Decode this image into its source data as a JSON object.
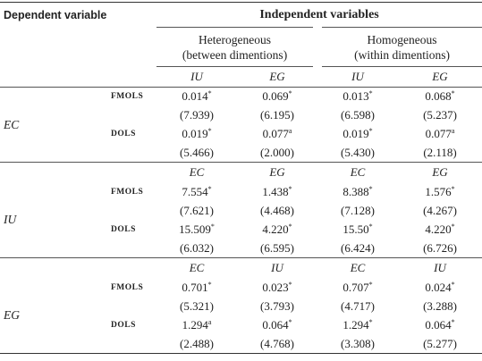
{
  "header": {
    "dependent": "Dependent variable",
    "independent": "Independent variables",
    "groups": [
      [
        "Heterogeneous",
        "(between dimentions)"
      ],
      [
        "Homogeneous",
        "(within dimentions)"
      ]
    ]
  },
  "sections": [
    {
      "label": "EC",
      "columns": [
        "IU",
        "EG",
        "IU",
        "EG"
      ],
      "rows": [
        {
          "method": "FMOLS",
          "coef": [
            [
              "0.014",
              "*"
            ],
            [
              "0.069",
              "*"
            ],
            [
              "0.013",
              "*"
            ],
            [
              "0.068",
              "*"
            ]
          ],
          "t": [
            "(7.939)",
            "(6.195)",
            "(6.598)",
            "(5.237)"
          ]
        },
        {
          "method": "DOLS",
          "coef": [
            [
              "0.019",
              "*"
            ],
            [
              "0.077",
              "a"
            ],
            [
              "0.019",
              "*"
            ],
            [
              "0.077",
              "a"
            ]
          ],
          "t": [
            "(5.466)",
            "(2.000)",
            "(5.430)",
            "(2.118)"
          ]
        }
      ]
    },
    {
      "label": "IU",
      "columns": [
        "EC",
        "EG",
        "EC",
        "EG"
      ],
      "rows": [
        {
          "method": "FMOLS",
          "coef": [
            [
              "7.554",
              "*"
            ],
            [
              "1.438",
              "*"
            ],
            [
              "8.388",
              "*"
            ],
            [
              "1.576",
              "*"
            ]
          ],
          "t": [
            "(7.621)",
            "(4.468)",
            "(7.128)",
            "(4.267)"
          ]
        },
        {
          "method": "DOLS",
          "coef": [
            [
              "15.509",
              "*"
            ],
            [
              "4.220",
              "*"
            ],
            [
              "15.50",
              "*"
            ],
            [
              "4.220",
              "*"
            ]
          ],
          "t": [
            "(6.032)",
            "(6.595)",
            "(6.424)",
            "(6.726)"
          ]
        }
      ]
    },
    {
      "label": "EG",
      "columns": [
        "EC",
        "IU",
        "EC",
        "IU"
      ],
      "rows": [
        {
          "method": "FMOLS",
          "coef": [
            [
              "0.701",
              "*"
            ],
            [
              "0.023",
              "*"
            ],
            [
              "0.707",
              "*"
            ],
            [
              "0.024",
              "*"
            ]
          ],
          "t": [
            "(5.321)",
            "(3.793)",
            "(4.717)",
            "(3.288)"
          ]
        },
        {
          "method": "DOLS",
          "coef": [
            [
              "1.294",
              "a"
            ],
            [
              "0.064",
              "*"
            ],
            [
              "1.294",
              "*"
            ],
            [
              "0.064",
              "*"
            ]
          ],
          "t": [
            "(2.488)",
            "(4.768)",
            "(3.308)",
            "(5.277)"
          ]
        }
      ]
    }
  ]
}
